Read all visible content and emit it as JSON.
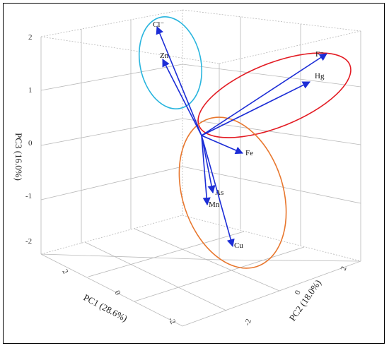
{
  "chart_data": {
    "type": "scatter",
    "subtype": "3d-biplot-loading-vectors",
    "axes": {
      "x": {
        "label": "PC1 (28.6%)",
        "ticks": [
          "2",
          "0",
          "-2"
        ]
      },
      "y": {
        "label": "PC2 (18.0%)",
        "ticks": [
          "-2",
          "0",
          "2"
        ]
      },
      "z": {
        "label": "PC3 (16.0%)",
        "ticks": [
          "2",
          "1",
          "0",
          "-1",
          "-2"
        ],
        "range": [
          -2.4,
          2.0
        ]
      }
    },
    "vectors": [
      {
        "name": "Cl⁻",
        "z": 2.0
      },
      {
        "name": "Zn",
        "z": 1.55
      },
      {
        "name": "F⁻",
        "z": 1.3
      },
      {
        "name": "Hg",
        "z": 1.0
      },
      {
        "name": "Fe",
        "z": -0.1
      },
      {
        "name": "As",
        "z": -1.15
      },
      {
        "name": "Mn",
        "z": -1.45
      },
      {
        "name": "Cu",
        "z": -2.3
      }
    ],
    "groups": [
      {
        "color": "#29b5de",
        "members": [
          "Cl⁻",
          "Zn"
        ]
      },
      {
        "color": "#e31b23",
        "members": [
          "F⁻",
          "Hg"
        ]
      },
      {
        "color": "#e8772e",
        "members": [
          "Fe",
          "As",
          "Mn",
          "Cu"
        ]
      }
    ],
    "vector_color": "#1c2dd6",
    "grid": true
  }
}
